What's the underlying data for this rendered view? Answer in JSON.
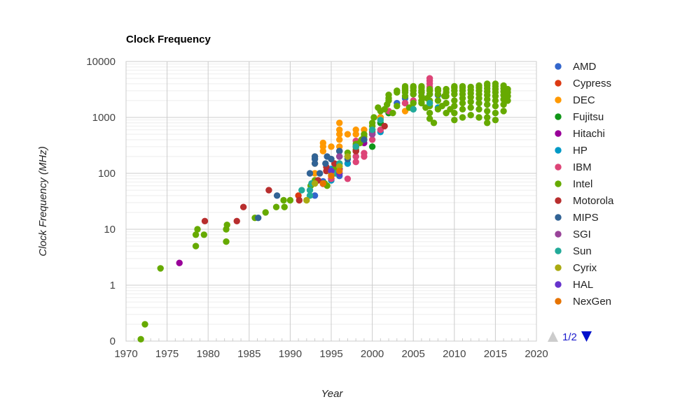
{
  "chart_data": {
    "type": "scatter",
    "title": "Clock Frequency",
    "xlabel": "Year",
    "ylabel": "Clock Frequency (MHz)",
    "x_scale": "linear",
    "y_scale": "log",
    "xlim": [
      1970,
      2020
    ],
    "x_ticks": [
      1970,
      1975,
      1980,
      1985,
      1990,
      1995,
      2000,
      2005,
      2010,
      2015,
      2020
    ],
    "y_tick_labels": [
      "0",
      "1",
      "10",
      "100",
      "1000",
      "10000"
    ],
    "y_ticks": [
      0.1,
      1,
      10,
      100,
      1000,
      10000
    ],
    "grid": true,
    "legend_position": "right",
    "legend_page": "1/2",
    "series": [
      {
        "name": "AMD",
        "color": "#3366cc",
        "points": [
          [
            1993,
            40
          ],
          [
            1994,
            72
          ],
          [
            1996,
            90
          ],
          [
            2001,
            1000
          ],
          [
            2003,
            1800
          ],
          [
            2004,
            2200
          ],
          [
            2005,
            2600
          ],
          [
            2006,
            2800
          ],
          [
            2007,
            2600
          ],
          [
            2008,
            2500
          ]
        ]
      },
      {
        "name": "Cypress",
        "color": "#dc3912",
        "points": [
          [
            1991,
            40
          ],
          [
            1995,
            80
          ],
          [
            1996,
            100
          ],
          [
            2001,
            1000
          ],
          [
            2004,
            1800
          ]
        ]
      },
      {
        "name": "DEC",
        "color": "#ff9900",
        "points": [
          [
            1993,
            100
          ],
          [
            1993,
            150
          ],
          [
            1993,
            200
          ],
          [
            1994,
            250
          ],
          [
            1994,
            300
          ],
          [
            1994,
            350
          ],
          [
            1995,
            300
          ],
          [
            1996,
            300
          ],
          [
            1996,
            400
          ],
          [
            1996,
            500
          ],
          [
            1996,
            600
          ],
          [
            1996,
            800
          ],
          [
            1997,
            500
          ],
          [
            1998,
            500
          ],
          [
            1998,
            600
          ],
          [
            1999,
            600
          ],
          [
            2001,
            1000
          ],
          [
            2002,
            1200
          ],
          [
            2004,
            1300
          ]
        ]
      },
      {
        "name": "Fujitsu",
        "color": "#109618",
        "points": [
          [
            1996,
            120
          ],
          [
            1997,
            200
          ],
          [
            1998,
            250
          ],
          [
            2000,
            300
          ],
          [
            2001,
            800
          ],
          [
            2002,
            1200
          ]
        ]
      },
      {
        "name": "Hitachi",
        "color": "#990099",
        "points": [
          [
            1976.5,
            2.5
          ],
          [
            1995,
            100
          ],
          [
            1996,
            120
          ],
          [
            1997,
            150
          ],
          [
            1999,
            350
          ]
        ]
      },
      {
        "name": "HP",
        "color": "#0099c6",
        "points": [
          [
            1995,
            75
          ],
          [
            1995,
            120
          ],
          [
            1996,
            200
          ],
          [
            1996,
            250
          ],
          [
            1997,
            150
          ],
          [
            1998,
            200
          ],
          [
            1998,
            300
          ],
          [
            2000,
            500
          ],
          [
            2001,
            550
          ],
          [
            2005,
            1400
          ],
          [
            2008,
            1500
          ]
        ]
      },
      {
        "name": "IBM",
        "color": "#dd4477",
        "points": [
          [
            1994,
            65
          ],
          [
            1995,
            80
          ],
          [
            1995,
            110
          ],
          [
            1996,
            150
          ],
          [
            1996,
            200
          ],
          [
            1996,
            250
          ],
          [
            1997,
            80
          ],
          [
            1998,
            160
          ],
          [
            1998,
            200
          ],
          [
            1998,
            250
          ],
          [
            1998,
            380
          ],
          [
            1999,
            200
          ],
          [
            1999,
            230
          ],
          [
            2000,
            400
          ],
          [
            2001,
            600
          ],
          [
            2002,
            1300
          ],
          [
            2004,
            1800
          ],
          [
            2005,
            2000
          ],
          [
            2007,
            3000
          ],
          [
            2007,
            3500
          ],
          [
            2007,
            4000
          ],
          [
            2007,
            4500
          ],
          [
            2007,
            5000
          ]
        ]
      },
      {
        "name": "Intel",
        "color": "#66aa00",
        "points": [
          [
            1971.8,
            0.108
          ],
          [
            1972.3,
            0.2
          ],
          [
            1974.2,
            2
          ],
          [
            1978.5,
            5
          ],
          [
            1978.5,
            8
          ],
          [
            1978.7,
            10
          ],
          [
            1979.5,
            8
          ],
          [
            1982.2,
            6
          ],
          [
            1982.2,
            10
          ],
          [
            1982.3,
            12
          ],
          [
            1985.7,
            16
          ],
          [
            1987,
            20
          ],
          [
            1988.3,
            25
          ],
          [
            1989.2,
            33
          ],
          [
            1989.3,
            25
          ],
          [
            1990,
            33
          ],
          [
            1992.5,
            60
          ],
          [
            1993,
            66
          ],
          [
            1993,
            75
          ],
          [
            1994.2,
            66
          ],
          [
            1994.5,
            60
          ],
          [
            1995,
            100
          ],
          [
            1995.5,
            120
          ],
          [
            1996,
            133
          ],
          [
            1996,
            150
          ],
          [
            1997,
            200
          ],
          [
            1997,
            233
          ],
          [
            1998,
            266
          ],
          [
            1998,
            300
          ],
          [
            1998,
            333
          ],
          [
            1998.5,
            350
          ],
          [
            1998.7,
            400
          ],
          [
            1999,
            450
          ],
          [
            1999,
            500
          ],
          [
            2000,
            600
          ],
          [
            2000,
            700
          ],
          [
            2000,
            800
          ],
          [
            2000.2,
            1000
          ],
          [
            2000.7,
            1500
          ],
          [
            2001,
            1300
          ],
          [
            2001.5,
            1400
          ],
          [
            2001.8,
            1700
          ],
          [
            2002,
            2000
          ],
          [
            2002,
            2200
          ],
          [
            2002,
            2533
          ],
          [
            2002.5,
            1200
          ],
          [
            2003,
            1600
          ],
          [
            2003,
            2800
          ],
          [
            2003,
            3000
          ],
          [
            2004,
            2400
          ],
          [
            2004,
            2800
          ],
          [
            2004,
            3000
          ],
          [
            2004,
            3200
          ],
          [
            2004,
            3400
          ],
          [
            2004,
            3600
          ],
          [
            2004.5,
            1500
          ],
          [
            2005,
            1800
          ],
          [
            2005,
            2600
          ],
          [
            2005,
            3000
          ],
          [
            2005,
            3400
          ],
          [
            2005,
            3600
          ],
          [
            2006,
            1800
          ],
          [
            2006,
            2000
          ],
          [
            2006,
            2400
          ],
          [
            2006,
            2800
          ],
          [
            2006,
            3000
          ],
          [
            2006,
            3400
          ],
          [
            2006,
            3600
          ],
          [
            2006.5,
            1500
          ],
          [
            2006.7,
            2200
          ],
          [
            2007,
            950
          ],
          [
            2007,
            1200
          ],
          [
            2007,
            1600
          ],
          [
            2007,
            2000
          ],
          [
            2007,
            2600
          ],
          [
            2007,
            3000
          ],
          [
            2007,
            3200
          ],
          [
            2007.5,
            800
          ],
          [
            2008,
            1400
          ],
          [
            2008,
            2000
          ],
          [
            2008,
            2600
          ],
          [
            2008,
            3000
          ],
          [
            2008,
            3200
          ],
          [
            2008.5,
            1600
          ],
          [
            2008.8,
            2400
          ],
          [
            2009,
            1200
          ],
          [
            2009,
            1800
          ],
          [
            2009,
            2400
          ],
          [
            2009,
            2800
          ],
          [
            2009,
            3200
          ],
          [
            2009.5,
            1400
          ],
          [
            2010,
            900
          ],
          [
            2010,
            1200
          ],
          [
            2010,
            1600
          ],
          [
            2010,
            2000
          ],
          [
            2010,
            2600
          ],
          [
            2010,
            3000
          ],
          [
            2010,
            3400
          ],
          [
            2010,
            3600
          ],
          [
            2011,
            1000
          ],
          [
            2011,
            1400
          ],
          [
            2011,
            1800
          ],
          [
            2011,
            2200
          ],
          [
            2011,
            2600
          ],
          [
            2011,
            3000
          ],
          [
            2011,
            3400
          ],
          [
            2011,
            3600
          ],
          [
            2012,
            1100
          ],
          [
            2012,
            1500
          ],
          [
            2012,
            1900
          ],
          [
            2012,
            2300
          ],
          [
            2012,
            2700
          ],
          [
            2012,
            3100
          ],
          [
            2012,
            3500
          ],
          [
            2013,
            1000
          ],
          [
            2013,
            1400
          ],
          [
            2013,
            1800
          ],
          [
            2013,
            2200
          ],
          [
            2013,
            2600
          ],
          [
            2013,
            3000
          ],
          [
            2013,
            3400
          ],
          [
            2013,
            3700
          ],
          [
            2014,
            800
          ],
          [
            2014,
            1000
          ],
          [
            2014,
            1300
          ],
          [
            2014,
            1700
          ],
          [
            2014,
            2100
          ],
          [
            2014,
            2500
          ],
          [
            2014,
            2900
          ],
          [
            2014,
            3300
          ],
          [
            2014,
            3700
          ],
          [
            2014,
            4000
          ],
          [
            2015,
            900
          ],
          [
            2015,
            1200
          ],
          [
            2015,
            1600
          ],
          [
            2015,
            2000
          ],
          [
            2015,
            2400
          ],
          [
            2015,
            2800
          ],
          [
            2015,
            3200
          ],
          [
            2015,
            3600
          ],
          [
            2015,
            4000
          ],
          [
            2016,
            1300
          ],
          [
            2016,
            1700
          ],
          [
            2016,
            2100
          ],
          [
            2016,
            2500
          ],
          [
            2016,
            2900
          ],
          [
            2016,
            3300
          ],
          [
            2016,
            3700
          ],
          [
            2016.5,
            2000
          ],
          [
            2016.5,
            2400
          ],
          [
            2016.5,
            2800
          ],
          [
            2016.5,
            3200
          ]
        ]
      },
      {
        "name": "Motorola",
        "color": "#b82e2e",
        "points": [
          [
            1979.6,
            14
          ],
          [
            1983.5,
            14
          ],
          [
            1984.3,
            25
          ],
          [
            1987.4,
            50
          ],
          [
            1991.1,
            33
          ],
          [
            1993.4,
            75
          ],
          [
            1994.4,
            110
          ],
          [
            1994.4,
            130
          ],
          [
            1995.4,
            150
          ],
          [
            1998,
            250
          ],
          [
            1999,
            400
          ],
          [
            2000,
            550
          ],
          [
            2001.5,
            700
          ]
        ]
      },
      {
        "name": "MIPS",
        "color": "#316395",
        "points": [
          [
            1986.1,
            16
          ],
          [
            1988.4,
            40
          ],
          [
            1992.4,
            100
          ],
          [
            1993,
            150
          ],
          [
            1993,
            180
          ],
          [
            1993,
            200
          ],
          [
            1993.6,
            100
          ],
          [
            1994.3,
            150
          ],
          [
            1994.5,
            200
          ],
          [
            1995,
            180
          ],
          [
            1996,
            250
          ],
          [
            1997,
            180
          ],
          [
            1998,
            300
          ],
          [
            1999,
            400
          ]
        ]
      },
      {
        "name": "SGI",
        "color": "#994499",
        "points": [
          [
            1996,
            200
          ],
          [
            1998,
            300
          ],
          [
            2000,
            500
          ]
        ]
      },
      {
        "name": "Sun",
        "color": "#22aa99",
        "points": [
          [
            1991.4,
            50
          ],
          [
            1992.4,
            40
          ],
          [
            1992.4,
            50
          ],
          [
            1992.6,
            66
          ],
          [
            1995.5,
            100
          ],
          [
            1996,
            150
          ],
          [
            1997,
            200
          ],
          [
            1998,
            300
          ],
          [
            2000,
            600
          ],
          [
            2001,
            900
          ],
          [
            2005,
            1400
          ],
          [
            2007,
            1800
          ]
        ]
      },
      {
        "name": "Cyrix",
        "color": "#aaaa11",
        "points": [
          [
            1992,
            33
          ],
          [
            1993,
            66
          ],
          [
            1995,
            100
          ],
          [
            1996,
            133
          ],
          [
            1997,
            200
          ]
        ]
      },
      {
        "name": "HAL",
        "color": "#6633cc",
        "points": [
          [
            1995,
            110
          ],
          [
            1996,
            100
          ]
        ]
      },
      {
        "name": "NexGen",
        "color": "#e67300",
        "points": [
          [
            1994,
            66
          ],
          [
            1995,
            90
          ],
          [
            1996,
            110
          ]
        ]
      }
    ]
  }
}
